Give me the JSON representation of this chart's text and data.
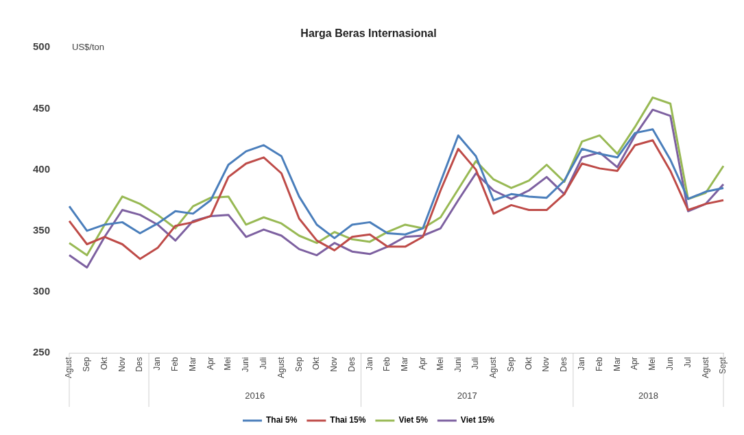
{
  "chart_data": {
    "type": "line",
    "title": "Harga Beras Internasional",
    "ylabel": "US$/ton",
    "categories": [
      "Agust",
      "Sep",
      "Okt",
      "Nov",
      "Des",
      "Jan",
      "Feb",
      "Mar",
      "Apr",
      "Mei",
      "Juni",
      "Juli",
      "Agust",
      "Sep",
      "Okt",
      "Nov",
      "Des",
      "Jan",
      "Feb",
      "Mar",
      "Apr",
      "Mei",
      "Juni",
      "Juli",
      "Agust",
      "Sep",
      "Okt",
      "Nov",
      "Des",
      "Jan",
      "Feb",
      "Mar",
      "Apr",
      "Mei",
      "Jun",
      "Jul",
      "Agust",
      "Sept"
    ],
    "series": [
      {
        "name": "Thai 5%",
        "color": "#4a7ebb",
        "values": [
          370,
          350,
          355,
          357,
          348,
          356,
          366,
          364,
          375,
          404,
          415,
          420,
          411,
          378,
          355,
          344,
          355,
          357,
          348,
          347,
          352,
          390,
          428,
          411,
          375,
          380,
          378,
          377,
          391,
          417,
          413,
          410,
          430,
          433,
          408,
          376,
          382,
          385
        ]
      },
      {
        "name": "Thai 15%",
        "color": "#be4b48",
        "values": [
          358,
          339,
          345,
          339,
          327,
          336,
          354,
          357,
          362,
          394,
          405,
          410,
          397,
          360,
          342,
          334,
          345,
          347,
          337,
          337,
          345,
          383,
          417,
          400,
          364,
          371,
          367,
          367,
          380,
          405,
          401,
          399,
          420,
          424,
          399,
          367,
          372,
          375
        ]
      },
      {
        "name": "Viet 5%",
        "color": "#98b954",
        "values": [
          340,
          330,
          355,
          378,
          372,
          363,
          352,
          370,
          377,
          378,
          355,
          361,
          356,
          346,
          340,
          349,
          343,
          341,
          349,
          355,
          352,
          361,
          384,
          407,
          392,
          385,
          391,
          404,
          390,
          423,
          428,
          413,
          435,
          459,
          454,
          376,
          381,
          403
        ]
      },
      {
        "name": "Viet 15%",
        "color": "#7d60a0",
        "values": [
          330,
          320,
          345,
          367,
          363,
          355,
          342,
          358,
          362,
          363,
          345,
          351,
          346,
          335,
          330,
          340,
          333,
          331,
          337,
          345,
          346,
          352,
          375,
          397,
          383,
          376,
          383,
          394,
          380,
          410,
          414,
          402,
          428,
          449,
          444,
          366,
          372,
          388
        ]
      }
    ],
    "annotations": [
      "2016",
      "2017",
      "2018"
    ],
    "ylim": [
      250,
      500
    ],
    "yticks": [
      250,
      300,
      350,
      400,
      450,
      500
    ],
    "grid": false,
    "legend": "bottom",
    "marker": "none",
    "line_style": "solid"
  }
}
